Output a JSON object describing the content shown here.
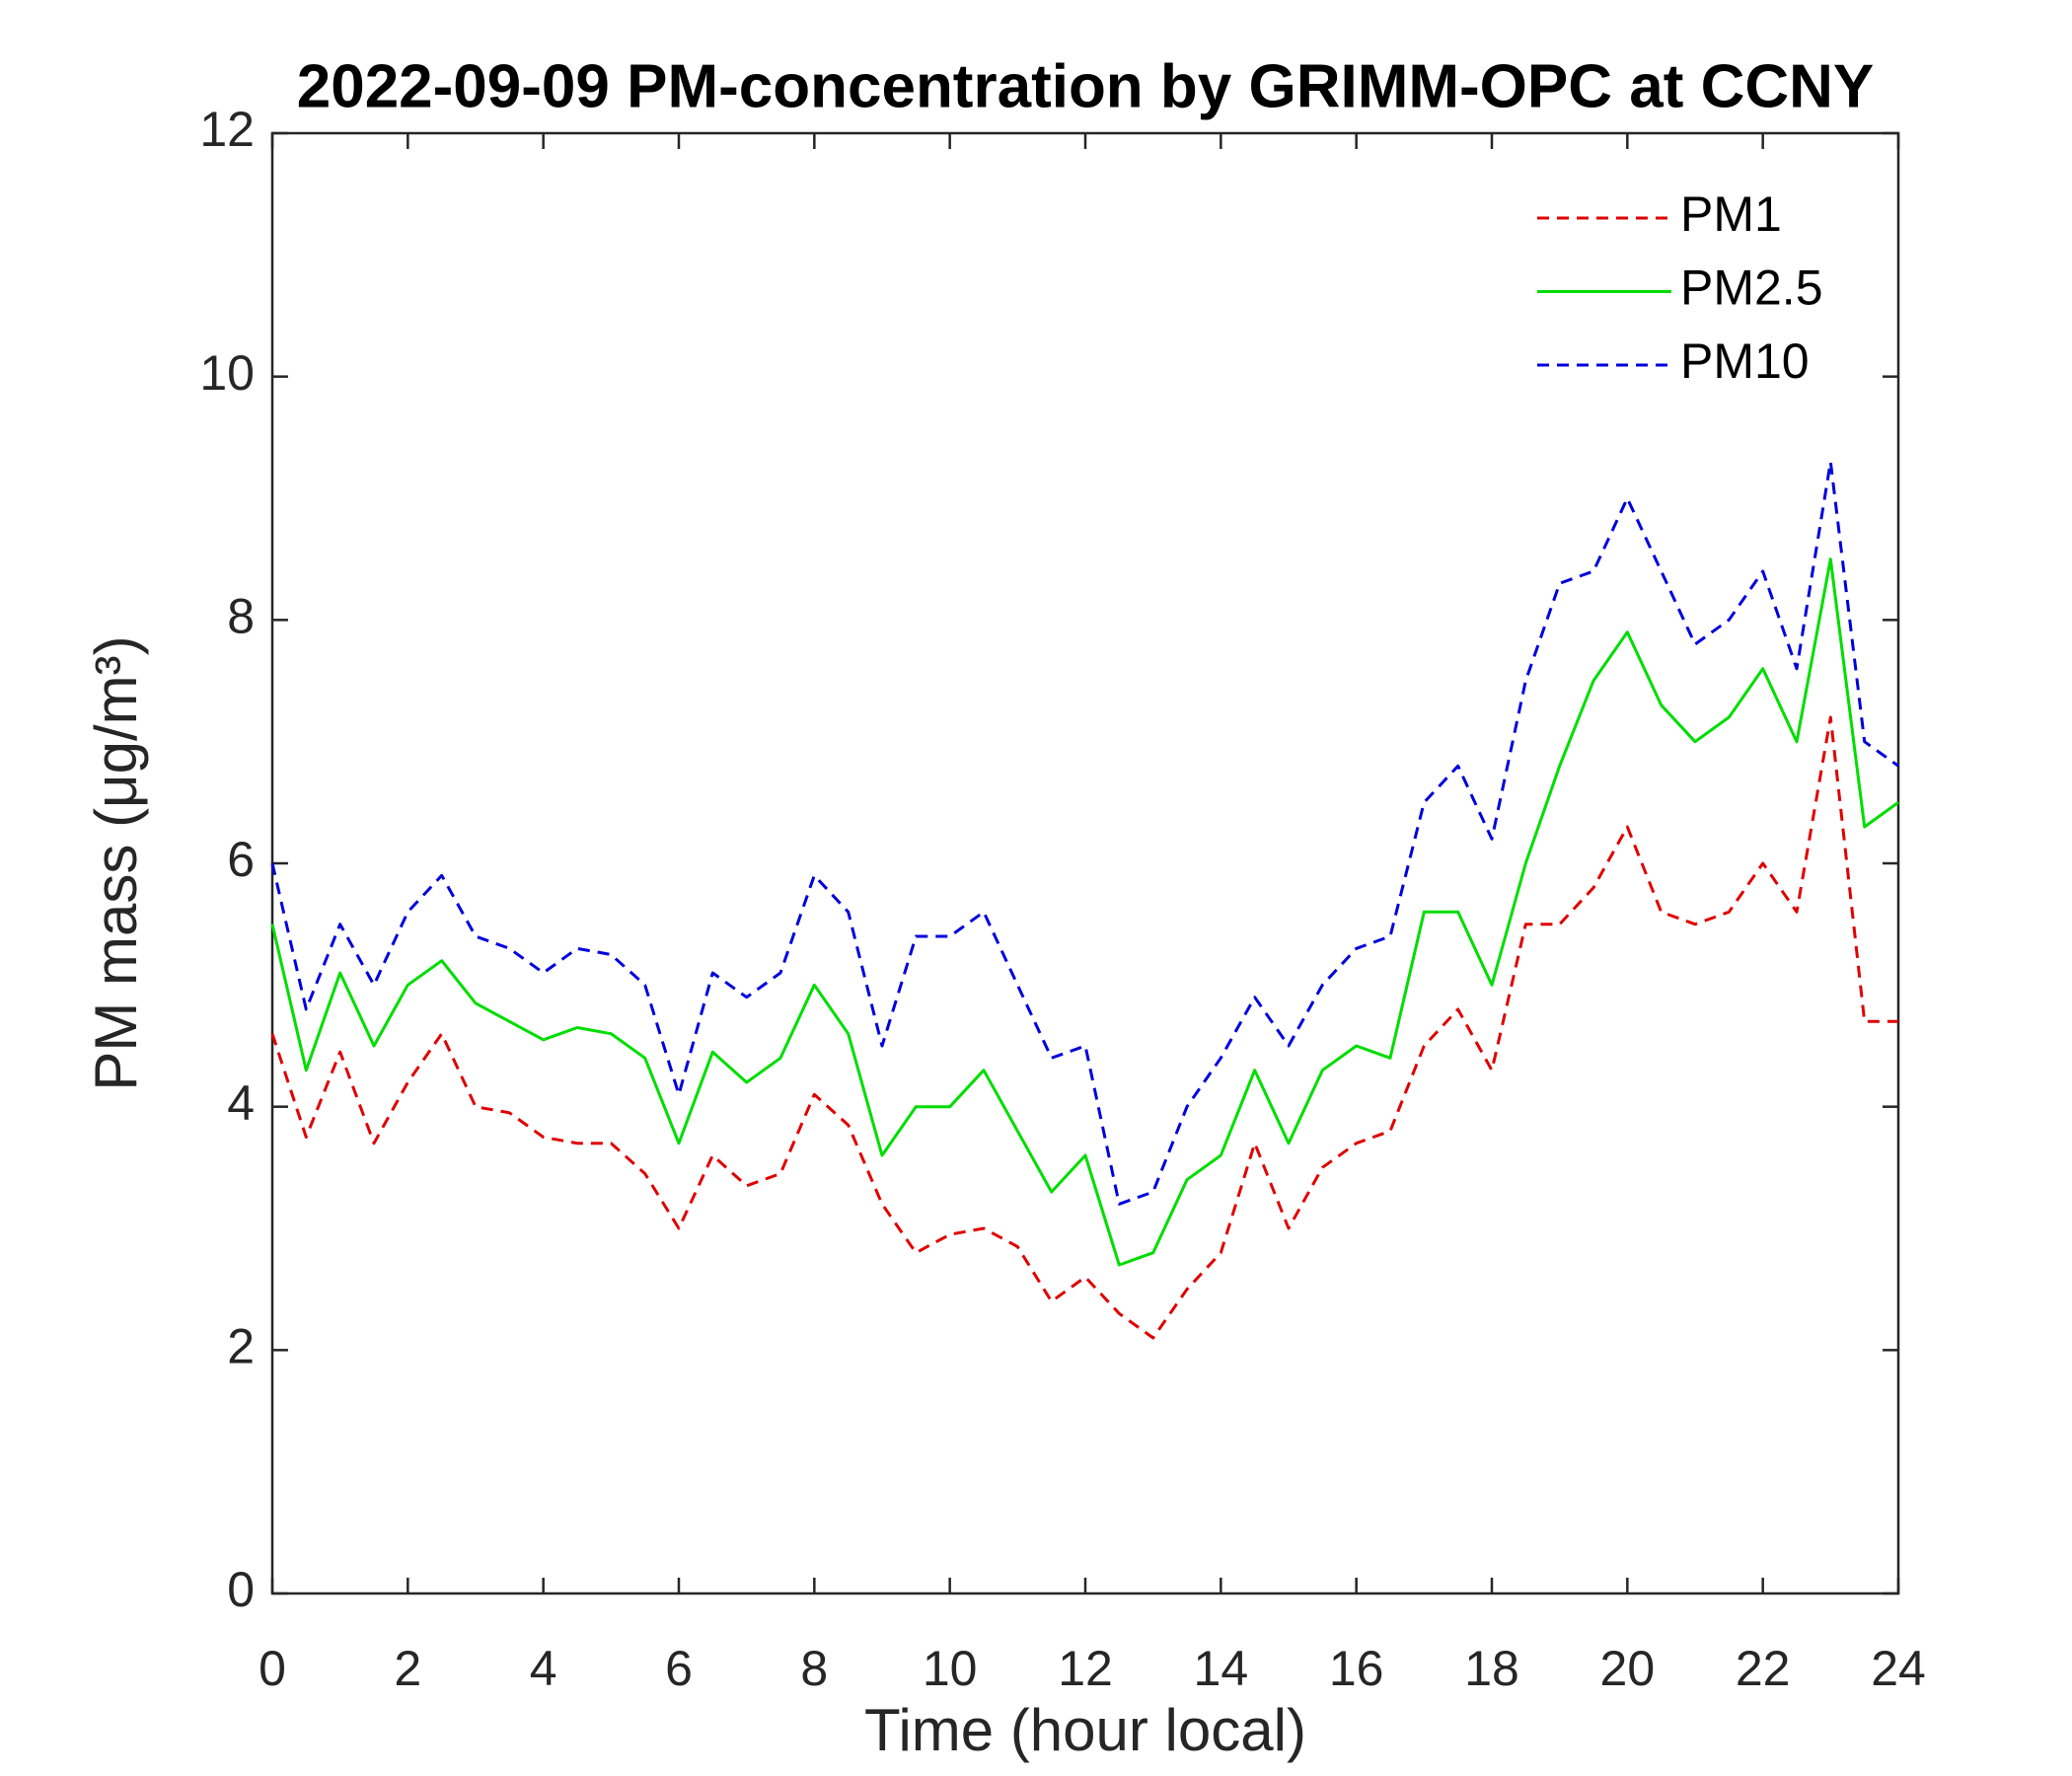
{
  "chart_data": {
    "type": "line",
    "title": "2022-09-09 PM-concentration by GRIMM-OPC at CCNY",
    "xlabel": "Time (hour local)",
    "ylabel": "PM mass (μg/m³)",
    "x": [
      0,
      0.5,
      1,
      1.5,
      2,
      2.5,
      3,
      3.5,
      4,
      4.5,
      5,
      5.5,
      6,
      6.5,
      7,
      7.5,
      8,
      8.5,
      9,
      9.5,
      10,
      10.5,
      11,
      11.5,
      12,
      12.5,
      13,
      13.5,
      14,
      14.5,
      15,
      15.5,
      16,
      16.5,
      17,
      17.5,
      18,
      18.5,
      19,
      19.5,
      20,
      20.5,
      21,
      21.5,
      22,
      22.5,
      23,
      23.5,
      24
    ],
    "series": [
      {
        "name": "PM1",
        "color": "#e00000",
        "linestyle": "dashed",
        "values": [
          4.6,
          3.75,
          4.45,
          3.7,
          4.2,
          4.6,
          4.0,
          3.95,
          3.75,
          3.7,
          3.7,
          3.45,
          3.0,
          3.6,
          3.35,
          3.45,
          4.1,
          3.85,
          3.2,
          2.8,
          2.95,
          3.0,
          2.85,
          2.4,
          2.6,
          2.3,
          2.1,
          2.5,
          2.8,
          3.7,
          3.0,
          3.5,
          3.7,
          3.8,
          4.5,
          4.8,
          4.3,
          5.5,
          5.5,
          5.8,
          6.3,
          5.6,
          5.5,
          5.6,
          6.0,
          5.6,
          7.2,
          4.7,
          4.7
        ]
      },
      {
        "name": "PM2.5",
        "color": "#00dd00",
        "linestyle": "solid",
        "values": [
          5.5,
          4.3,
          5.1,
          4.5,
          5.0,
          5.2,
          4.85,
          4.7,
          4.55,
          4.65,
          4.6,
          4.4,
          3.7,
          4.45,
          4.2,
          4.4,
          5.0,
          4.6,
          3.6,
          4.0,
          4.0,
          4.3,
          3.8,
          3.3,
          3.6,
          2.7,
          2.8,
          3.4,
          3.6,
          4.3,
          3.7,
          4.3,
          4.5,
          4.4,
          5.6,
          5.6,
          5.0,
          6.0,
          6.8,
          7.5,
          7.9,
          7.3,
          7.0,
          7.2,
          7.6,
          7.0,
          8.5,
          6.3,
          6.5
        ]
      },
      {
        "name": "PM10",
        "color": "#0000dd",
        "linestyle": "dashed",
        "values": [
          6.0,
          4.8,
          5.5,
          5.0,
          5.6,
          5.9,
          5.4,
          5.3,
          5.1,
          5.3,
          5.25,
          5.0,
          4.1,
          5.1,
          4.9,
          5.1,
          5.9,
          5.6,
          4.5,
          5.4,
          5.4,
          5.6,
          5.0,
          4.4,
          4.5,
          3.2,
          3.3,
          4.0,
          4.4,
          4.9,
          4.5,
          5.0,
          5.3,
          5.4,
          6.5,
          6.8,
          6.2,
          7.5,
          8.3,
          8.4,
          9.0,
          8.4,
          7.8,
          8.0,
          8.4,
          7.6,
          9.3,
          7.0,
          6.8
        ]
      }
    ],
    "xlim": [
      0,
      24
    ],
    "xticks": [
      0,
      2,
      4,
      6,
      8,
      10,
      12,
      14,
      16,
      18,
      20,
      22,
      24
    ],
    "ylim": [
      0,
      12
    ],
    "yticks": [
      0,
      2,
      4,
      6,
      8,
      10,
      12
    ],
    "grid": false,
    "legend": "upper right"
  }
}
